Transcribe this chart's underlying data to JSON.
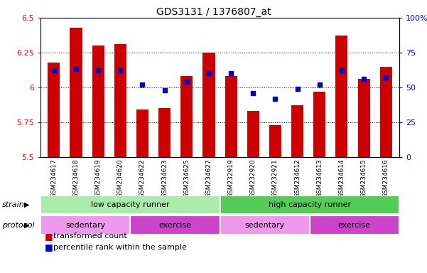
{
  "title": "GDS3131 / 1376807_at",
  "samples": [
    "GSM234617",
    "GSM234618",
    "GSM234619",
    "GSM234620",
    "GSM234622",
    "GSM234623",
    "GSM234625",
    "GSM234627",
    "GSM232919",
    "GSM232920",
    "GSM232921",
    "GSM234612",
    "GSM234613",
    "GSM234614",
    "GSM234615",
    "GSM234616"
  ],
  "red_values": [
    6.18,
    6.43,
    6.3,
    6.31,
    5.84,
    5.85,
    6.08,
    6.25,
    6.08,
    5.83,
    5.73,
    5.87,
    5.97,
    6.37,
    6.06,
    6.15
  ],
  "blue_values": [
    62,
    63,
    62,
    62,
    52,
    48,
    54,
    60,
    60,
    46,
    42,
    49,
    52,
    62,
    56,
    57
  ],
  "ylim_left": [
    5.5,
    6.5
  ],
  "ylim_right": [
    0,
    100
  ],
  "yticks_left": [
    5.5,
    5.75,
    6.0,
    6.25,
    6.5
  ],
  "yticks_right": [
    0,
    25,
    50,
    75,
    100
  ],
  "ytick_labels_left": [
    "5.5",
    "5.75",
    "6",
    "6.25",
    "6.5"
  ],
  "ytick_labels_right": [
    "0",
    "25",
    "50",
    "75",
    "100%"
  ],
  "bar_color": "#cc0000",
  "dot_color": "#0000cc",
  "bar_bottom": 5.5,
  "strain_labels": [
    "low capacity runner",
    "high capacity runner"
  ],
  "protocol_labels": [
    "sedentary",
    "exercise",
    "sedentary",
    "exercise"
  ],
  "strain_color_lcr": "#aaeaaa",
  "strain_color_hcr": "#55cc55",
  "protocol_color_sed": "#ee99ee",
  "protocol_color_exc": "#cc44cc",
  "legend_red_label": "transformed count",
  "legend_blue_label": "percentile rank within the sample",
  "strain_label": "strain",
  "protocol_label": "protocol",
  "grid_color": "#888888"
}
